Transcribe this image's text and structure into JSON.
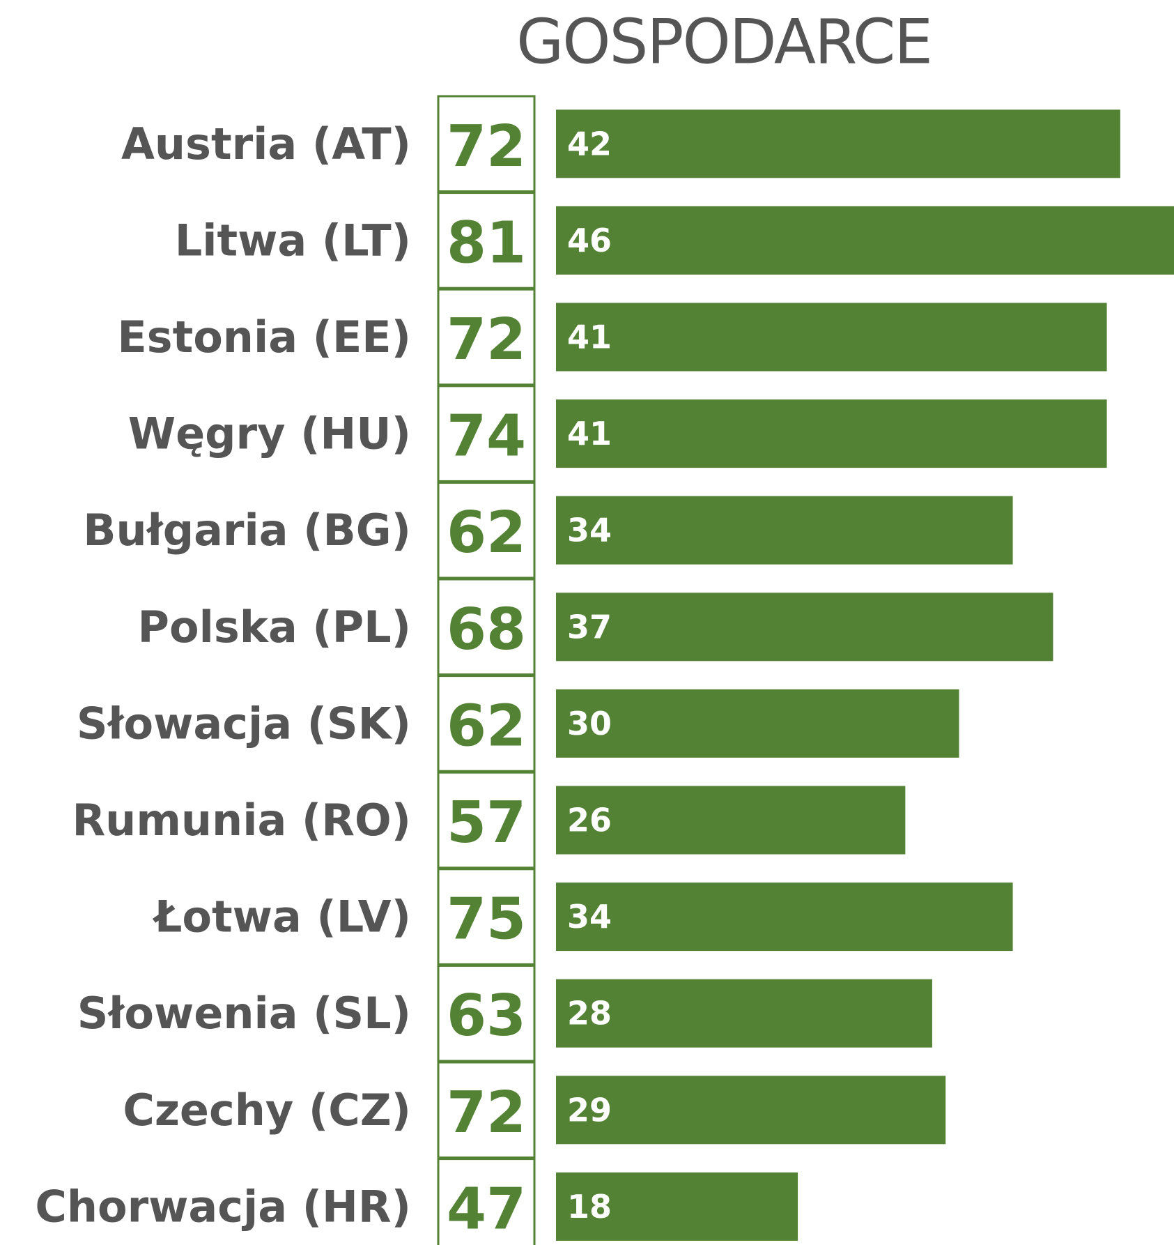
{
  "chart_data": {
    "type": "bar",
    "orientation": "horizontal",
    "title": "GOSPODARCE",
    "categories": [
      "Austria (AT)",
      "Litwa (LT)",
      "Estonia (EE)",
      "Węgry (HU)",
      "Bułgaria (BG)",
      "Polska (PL)",
      "Słowacja (SK)",
      "Rumunia (RO)",
      "Łotwa (LV)",
      "Słowenia (SL)",
      "Czechy (CZ)",
      "Chorwacja (HR)"
    ],
    "scores": [
      72,
      81,
      72,
      74,
      62,
      68,
      62,
      57,
      75,
      63,
      72,
      47
    ],
    "values": [
      42,
      46,
      41,
      41,
      34,
      37,
      30,
      26,
      34,
      28,
      29,
      18
    ],
    "color": "#548235"
  }
}
